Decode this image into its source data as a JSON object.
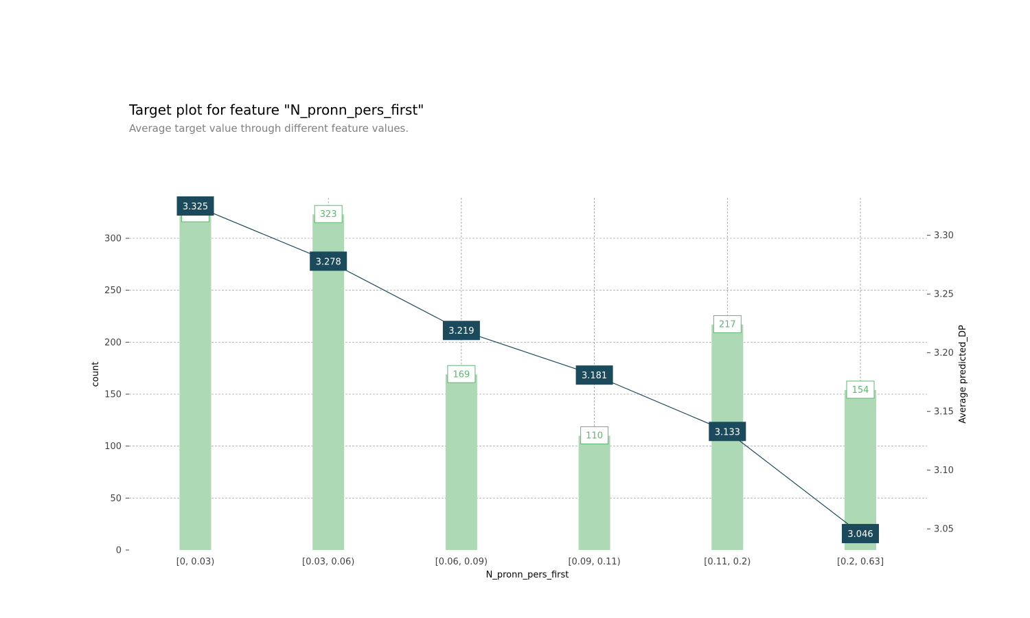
{
  "header": {
    "title": "Target plot for feature \"N_pronn_pers_first\"",
    "subtitle": "Average target value through different feature values."
  },
  "colors": {
    "bar": "#add9b5",
    "bar_label": "#5cb86f",
    "line": "#1a4a5c",
    "grid": "#a9a9a9",
    "tick_text": "#424242"
  },
  "chart_data": {
    "type": "bar",
    "categories": [
      "[0, 0.03)",
      "[0.03, 0.06)",
      "[0.06, 0.09)",
      "[0.09, 0.11)",
      "[0.11, 0.2)",
      "[0.2, 0.63]"
    ],
    "series": [
      {
        "name": "count",
        "type": "bar",
        "axis": "left",
        "values": [
          332,
          323,
          169,
          110,
          217,
          154
        ]
      },
      {
        "name": "Average predicted_DP",
        "type": "line",
        "axis": "right",
        "values": [
          3.325,
          3.278,
          3.219,
          3.181,
          3.133,
          3.046
        ]
      }
    ],
    "bar_labels": [
      "323",
      "169",
      "110",
      "217",
      "154"
    ],
    "line_labels": [
      "3.325",
      "3.278",
      "3.219",
      "3.181",
      "3.133",
      "3.046"
    ],
    "xlabel": "N_pronn_pers_first",
    "ylabel": "count",
    "ylabel_right": "Average predicted_DP",
    "ylim": [
      0,
      339
    ],
    "ylim_right": [
      3.032,
      3.332
    ],
    "yticks": [
      0,
      50,
      100,
      150,
      200,
      250,
      300
    ],
    "yticks_right": [
      3.05,
      3.1,
      3.15,
      3.2,
      3.25,
      3.3
    ],
    "ytick_labels": [
      "0",
      "50",
      "100",
      "150",
      "200",
      "250",
      "300"
    ],
    "ytick_labels_right": [
      "3.05",
      "3.10",
      "3.15",
      "3.20",
      "3.25",
      "3.30"
    ],
    "grid": true
  }
}
